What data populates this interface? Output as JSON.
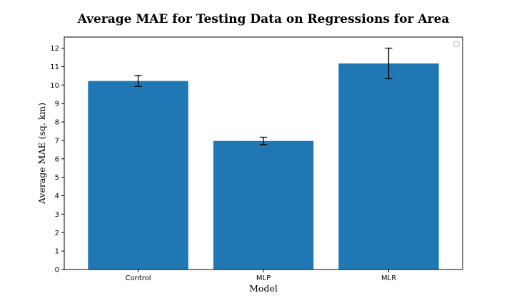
{
  "chart_data": {
    "type": "bar",
    "title": "Average MAE for Testing Data on Regressions for Area",
    "xlabel": "Model",
    "ylabel": "Average MAE (sq. km)",
    "categories": [
      "Control",
      "MLP",
      "MLR"
    ],
    "values": [
      10.22,
      6.97,
      11.17
    ],
    "error_low": [
      0.3,
      0.2,
      0.83
    ],
    "error_high": [
      0.3,
      0.2,
      0.83
    ],
    "ylim": [
      0,
      12.6
    ],
    "yticks": [
      "0",
      "1",
      "2",
      "3",
      "4",
      "5",
      "6",
      "7",
      "8",
      "9",
      "10",
      "11",
      "12"
    ],
    "grid": false,
    "legend": "top-right (empty)",
    "bar_color": "#1f77b4",
    "error_color": "#000000"
  }
}
